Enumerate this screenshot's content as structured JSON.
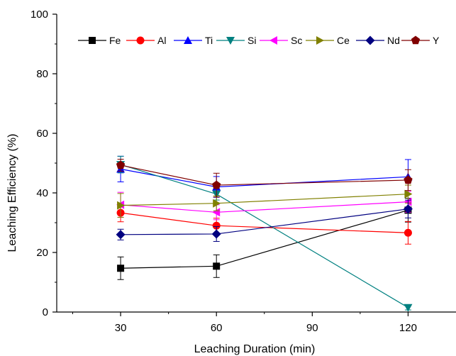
{
  "chart_data": {
    "type": "line",
    "xlabel": "Leaching Duration (min)",
    "ylabel": "Leaching Efficiency (%)",
    "xlim": [
      10,
      135
    ],
    "ylim": [
      0,
      100
    ],
    "xticks": [
      30,
      60,
      90,
      120
    ],
    "yticks": [
      0,
      20,
      40,
      60,
      80,
      100
    ],
    "x": [
      30,
      60,
      120
    ],
    "grid": false,
    "legend_position": "top, horizontal",
    "series": [
      {
        "name": "Fe",
        "values": [
          14.7,
          15.4,
          34.2
        ],
        "errors": [
          3.8,
          3.8,
          4.0
        ],
        "color": "#000000",
        "marker": "square"
      },
      {
        "name": "Al",
        "values": [
          33.3,
          29.0,
          26.6
        ],
        "errors": [
          3.0,
          2.5,
          3.8
        ],
        "color": "#ff0000",
        "marker": "circle"
      },
      {
        "name": "Ti",
        "values": [
          48.0,
          42.0,
          45.4
        ],
        "errors": [
          4.3,
          3.5,
          5.8
        ],
        "color": "#0000ff",
        "marker": "triangle-up"
      },
      {
        "name": "Si",
        "values": [
          49.5,
          39.6,
          1.5
        ],
        "errors": [
          2.8,
          2.0,
          0.8
        ],
        "color": "#008080",
        "marker": "triangle-down"
      },
      {
        "name": "Sc",
        "values": [
          36.0,
          33.5,
          37.0
        ],
        "errors": [
          4.2,
          2.5,
          3.5
        ],
        "color": "#ff00ff",
        "marker": "triangle-left"
      },
      {
        "name": "Ce",
        "values": [
          35.8,
          36.5,
          39.6
        ],
        "errors": [
          4.0,
          2.5,
          3.0
        ],
        "color": "#808000",
        "marker": "triangle-right"
      },
      {
        "name": "Nd",
        "values": [
          26.0,
          26.2,
          34.6
        ],
        "errors": [
          1.8,
          2.5,
          3.0
        ],
        "color": "#000080",
        "marker": "diamond"
      },
      {
        "name": "Y",
        "values": [
          49.3,
          42.6,
          44.3
        ],
        "errors": [
          2.0,
          4.0,
          3.5
        ],
        "color": "#800000",
        "marker": "pentagon"
      }
    ]
  }
}
